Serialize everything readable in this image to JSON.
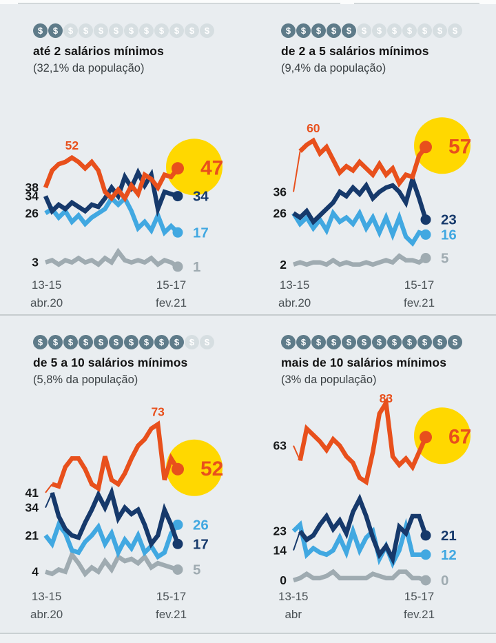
{
  "palette": {
    "orange": "#e8501c",
    "dark_blue": "#16396b",
    "light_blue": "#41a8e1",
    "gray": "#9fabb1",
    "yellow": "#ffd800",
    "label_dark": "#17191a",
    "axis_text": "#4c5357",
    "background": "#e9edf0"
  },
  "panels": [
    {
      "icons_filled": 2,
      "icons_total": 12,
      "title": "até 2 salários mínimos",
      "subtitle": "(32,1% da população)",
      "x_start_line1": "13-15",
      "x_start_line2": "abr.20",
      "x_end_line1": "15-17",
      "x_end_line2": "fev.21"
    },
    {
      "icons_filled": 5,
      "icons_total": 12,
      "title": "de 2 a 5 salários mínimos",
      "subtitle": "(9,4% da população)",
      "x_start_line1": "13-15",
      "x_start_line2": "abr.20",
      "x_end_line1": "15-17",
      "x_end_line2": "fev.21"
    },
    {
      "icons_filled": 10,
      "icons_total": 12,
      "title": "de 5 a 10 salários mínimos",
      "subtitle": "(5,8% da população)",
      "x_start_line1": "13-15",
      "x_start_line2": "abr.20",
      "x_end_line1": "15-17",
      "x_end_line2": "fev.21"
    },
    {
      "icons_filled": 12,
      "icons_total": 12,
      "title": "mais de 10 salários mínimos",
      "subtitle": "(3% da população)",
      "x_start_line1": "13-15",
      "x_start_line2": "abr",
      "x_end_line1": "15-17",
      "x_end_line2": "fev.21"
    }
  ],
  "chart_data": [
    {
      "type": "line",
      "title": "até 2 salários mínimos (32,1% da população)",
      "x_ticks": [
        "13-15 abr.20",
        "15-17 fev.21"
      ],
      "ylim": [
        0,
        85
      ],
      "grid": false,
      "legend": "none",
      "peak_label": {
        "series": "orange",
        "value": 52
      },
      "start_labels": {
        "orange": 38,
        "dark_blue": 34,
        "light_blue": 26,
        "gray": 3
      },
      "end_labels": {
        "orange": 47,
        "dark_blue": 34,
        "light_blue": 17,
        "gray": 1
      },
      "series": [
        {
          "name": "gray",
          "leader": false,
          "show_start": true,
          "values": [
            3,
            4,
            2,
            4,
            3,
            5,
            3,
            4,
            2,
            5,
            3,
            8,
            4,
            3,
            4,
            3,
            5,
            2,
            4,
            3,
            1
          ]
        },
        {
          "name": "light_blue",
          "leader": false,
          "show_start": true,
          "values": [
            26,
            28,
            24,
            27,
            22,
            25,
            21,
            24,
            26,
            28,
            33,
            30,
            33,
            27,
            19,
            22,
            18,
            25,
            17,
            20,
            17
          ]
        },
        {
          "name": "dark_blue",
          "leader": false,
          "show_start": true,
          "values": [
            34,
            27,
            30,
            28,
            31,
            29,
            27,
            30,
            29,
            33,
            38,
            34,
            43,
            38,
            45,
            39,
            44,
            28,
            36,
            35,
            34
          ]
        },
        {
          "name": "orange",
          "leader": false,
          "show_start": true,
          "end_circle": true,
          "values": [
            38,
            46,
            49,
            50,
            52,
            50,
            47,
            50,
            46,
            36,
            33,
            37,
            33,
            39,
            35,
            44,
            42,
            38,
            44,
            43,
            47
          ]
        }
      ]
    },
    {
      "type": "line",
      "title": "de 2 a 5 salários mínimos (9,4% da população)",
      "x_ticks": [
        "13-15 abr.20",
        "15-17 fev.21"
      ],
      "ylim": [
        0,
        85
      ],
      "grid": false,
      "legend": "none",
      "peak_label": {
        "series": "orange",
        "value": 60
      },
      "start_labels": {
        "orange": 36,
        "dark_blue": 26,
        "gray": 2
      },
      "end_labels": {
        "orange": 57,
        "dark_blue": 23,
        "light_blue": 16,
        "gray": 5
      },
      "series": [
        {
          "name": "gray",
          "leader": false,
          "show_start": true,
          "values": [
            2,
            3,
            2,
            3,
            3,
            2,
            4,
            2,
            3,
            2,
            2,
            3,
            2,
            3,
            4,
            3,
            6,
            4,
            4,
            3,
            5
          ]
        },
        {
          "name": "light_blue",
          "leader": false,
          "show_start": false,
          "values": [
            26,
            21,
            24,
            19,
            23,
            18,
            26,
            22,
            24,
            21,
            26,
            19,
            24,
            17,
            24,
            16,
            24,
            15,
            12,
            17,
            16
          ]
        },
        {
          "name": "dark_blue",
          "leader": false,
          "show_start": true,
          "values": [
            26,
            24,
            27,
            22,
            25,
            28,
            31,
            36,
            34,
            38,
            35,
            39,
            33,
            36,
            38,
            39,
            36,
            31,
            42,
            33,
            23
          ]
        },
        {
          "name": "orange",
          "leader": true,
          "show_start": true,
          "end_circle": true,
          "values": [
            36,
            55,
            58,
            60,
            54,
            57,
            51,
            45,
            48,
            46,
            50,
            47,
            44,
            49,
            44,
            47,
            40,
            44,
            43,
            53,
            57
          ]
        }
      ]
    },
    {
      "type": "line",
      "title": "de 5 a 10 salários mínimos (5,8% da população)",
      "x_ticks": [
        "13-15 abr.20",
        "15-17 fev.21"
      ],
      "ylim": [
        0,
        85
      ],
      "grid": false,
      "legend": "none",
      "peak_label": {
        "series": "orange",
        "value": 73
      },
      "start_labels": {
        "orange": 41,
        "dark_blue": 34,
        "light_blue": 21,
        "gray": 4
      },
      "end_labels": {
        "orange": 52,
        "light_blue": 26,
        "dark_blue": 17,
        "gray": 5
      },
      "series": [
        {
          "name": "gray",
          "leader": false,
          "show_start": true,
          "values": [
            4,
            3,
            5,
            4,
            12,
            8,
            3,
            6,
            4,
            9,
            5,
            11,
            9,
            10,
            8,
            11,
            6,
            8,
            7,
            6,
            5
          ]
        },
        {
          "name": "light_blue",
          "leader": false,
          "show_start": true,
          "values": [
            21,
            17,
            26,
            22,
            14,
            13,
            18,
            21,
            25,
            17,
            22,
            13,
            19,
            15,
            21,
            13,
            16,
            11,
            13,
            22,
            26
          ]
        },
        {
          "name": "dark_blue",
          "leader": true,
          "show_start": true,
          "values": [
            34,
            41,
            30,
            24,
            21,
            20,
            27,
            33,
            40,
            34,
            41,
            29,
            34,
            31,
            33,
            26,
            17,
            21,
            33,
            26,
            17
          ]
        },
        {
          "name": "orange",
          "leader": true,
          "show_start": true,
          "end_circle": true,
          "values": [
            41,
            45,
            44,
            53,
            57,
            57,
            52,
            45,
            43,
            58,
            47,
            45,
            50,
            57,
            63,
            66,
            71,
            73,
            47,
            57,
            52
          ]
        }
      ]
    },
    {
      "type": "line",
      "title": "mais de 10 salários mínimos (3% da população)",
      "x_ticks": [
        "13-15 abr",
        "15-17 fev.21"
      ],
      "ylim": [
        0,
        90
      ],
      "grid": false,
      "legend": "none",
      "peak_label": {
        "series": "orange",
        "value": 83
      },
      "start_labels": {
        "orange": 63,
        "light_blue": 23,
        "dark_blue": 14,
        "gray": 0
      },
      "end_labels": {
        "orange": 67,
        "dark_blue": 21,
        "light_blue": 12,
        "gray": 0
      },
      "series": [
        {
          "name": "gray",
          "leader": false,
          "show_start": true,
          "values": [
            0,
            1,
            3,
            1,
            1,
            2,
            4,
            1,
            1,
            1,
            1,
            1,
            3,
            2,
            1,
            1,
            4,
            4,
            1,
            1,
            0
          ]
        },
        {
          "name": "light_blue",
          "leader": false,
          "show_start": true,
          "values": [
            23,
            26,
            12,
            15,
            13,
            12,
            14,
            20,
            13,
            23,
            14,
            20,
            23,
            10,
            16,
            8,
            14,
            25,
            12,
            12,
            12
          ]
        },
        {
          "name": "dark_blue",
          "leader": true,
          "show_start": true,
          "values": [
            14,
            23,
            19,
            21,
            26,
            30,
            24,
            28,
            22,
            32,
            38,
            30,
            20,
            12,
            16,
            10,
            25,
            22,
            30,
            30,
            21
          ]
        },
        {
          "name": "orange",
          "leader": true,
          "show_start": true,
          "end_circle": true,
          "values": [
            63,
            56,
            71,
            68,
            65,
            61,
            66,
            63,
            58,
            55,
            48,
            46,
            60,
            78,
            83,
            58,
            54,
            57,
            53,
            60,
            67
          ]
        }
      ]
    }
  ]
}
